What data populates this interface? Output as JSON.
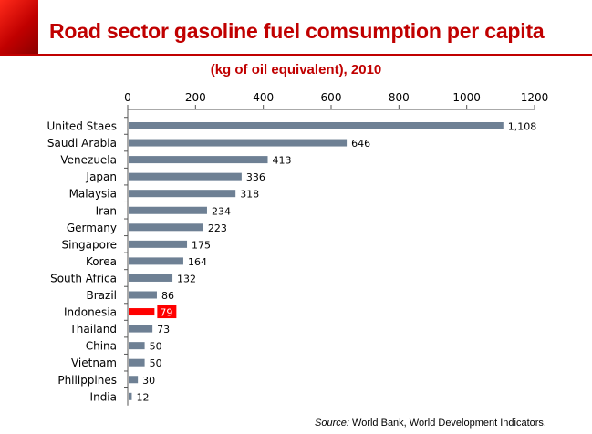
{
  "header": {
    "title": "Road sector gasoline fuel comsumption per capita",
    "subtitle": "(kg of oil equivalent), 2010"
  },
  "source": {
    "label": "Source:",
    "text": " World Bank, World Development Indicators."
  },
  "colors": {
    "bar": "#6e8094",
    "highlight": "#ff0000",
    "title": "#c00000"
  },
  "chart_data": {
    "type": "bar",
    "orientation": "horizontal",
    "title": "Road sector gasoline fuel comsumption per capita",
    "subtitle": "(kg of oil equivalent), 2010",
    "xlabel": "",
    "ylabel": "",
    "xlim": [
      0,
      1200
    ],
    "xticks": [
      0,
      200,
      400,
      600,
      800,
      1000,
      1200
    ],
    "tick_labels": [
      "0",
      "200",
      "400",
      "600",
      "800",
      "1000",
      "1200"
    ],
    "axis_position": "top",
    "grid": false,
    "highlight_category": "Indonesia",
    "categories": [
      "United Staes",
      "Saudi Arabia",
      "Venezuela",
      "Japan",
      "Malaysia",
      "Iran",
      "Germany",
      "Singapore",
      "Korea",
      "South Africa",
      "Brazil",
      "Indonesia",
      "Thailand",
      "China",
      "Vietnam",
      "Philippines",
      "India"
    ],
    "values": [
      1108,
      646,
      413,
      336,
      318,
      234,
      223,
      175,
      164,
      132,
      86,
      79,
      73,
      50,
      50,
      30,
      12
    ],
    "value_labels": [
      "1,108",
      "646",
      "413",
      "336",
      "318",
      "234",
      "223",
      "175",
      "164",
      "132",
      "86",
      "79",
      "73",
      "50",
      "50",
      "30",
      "12"
    ]
  }
}
